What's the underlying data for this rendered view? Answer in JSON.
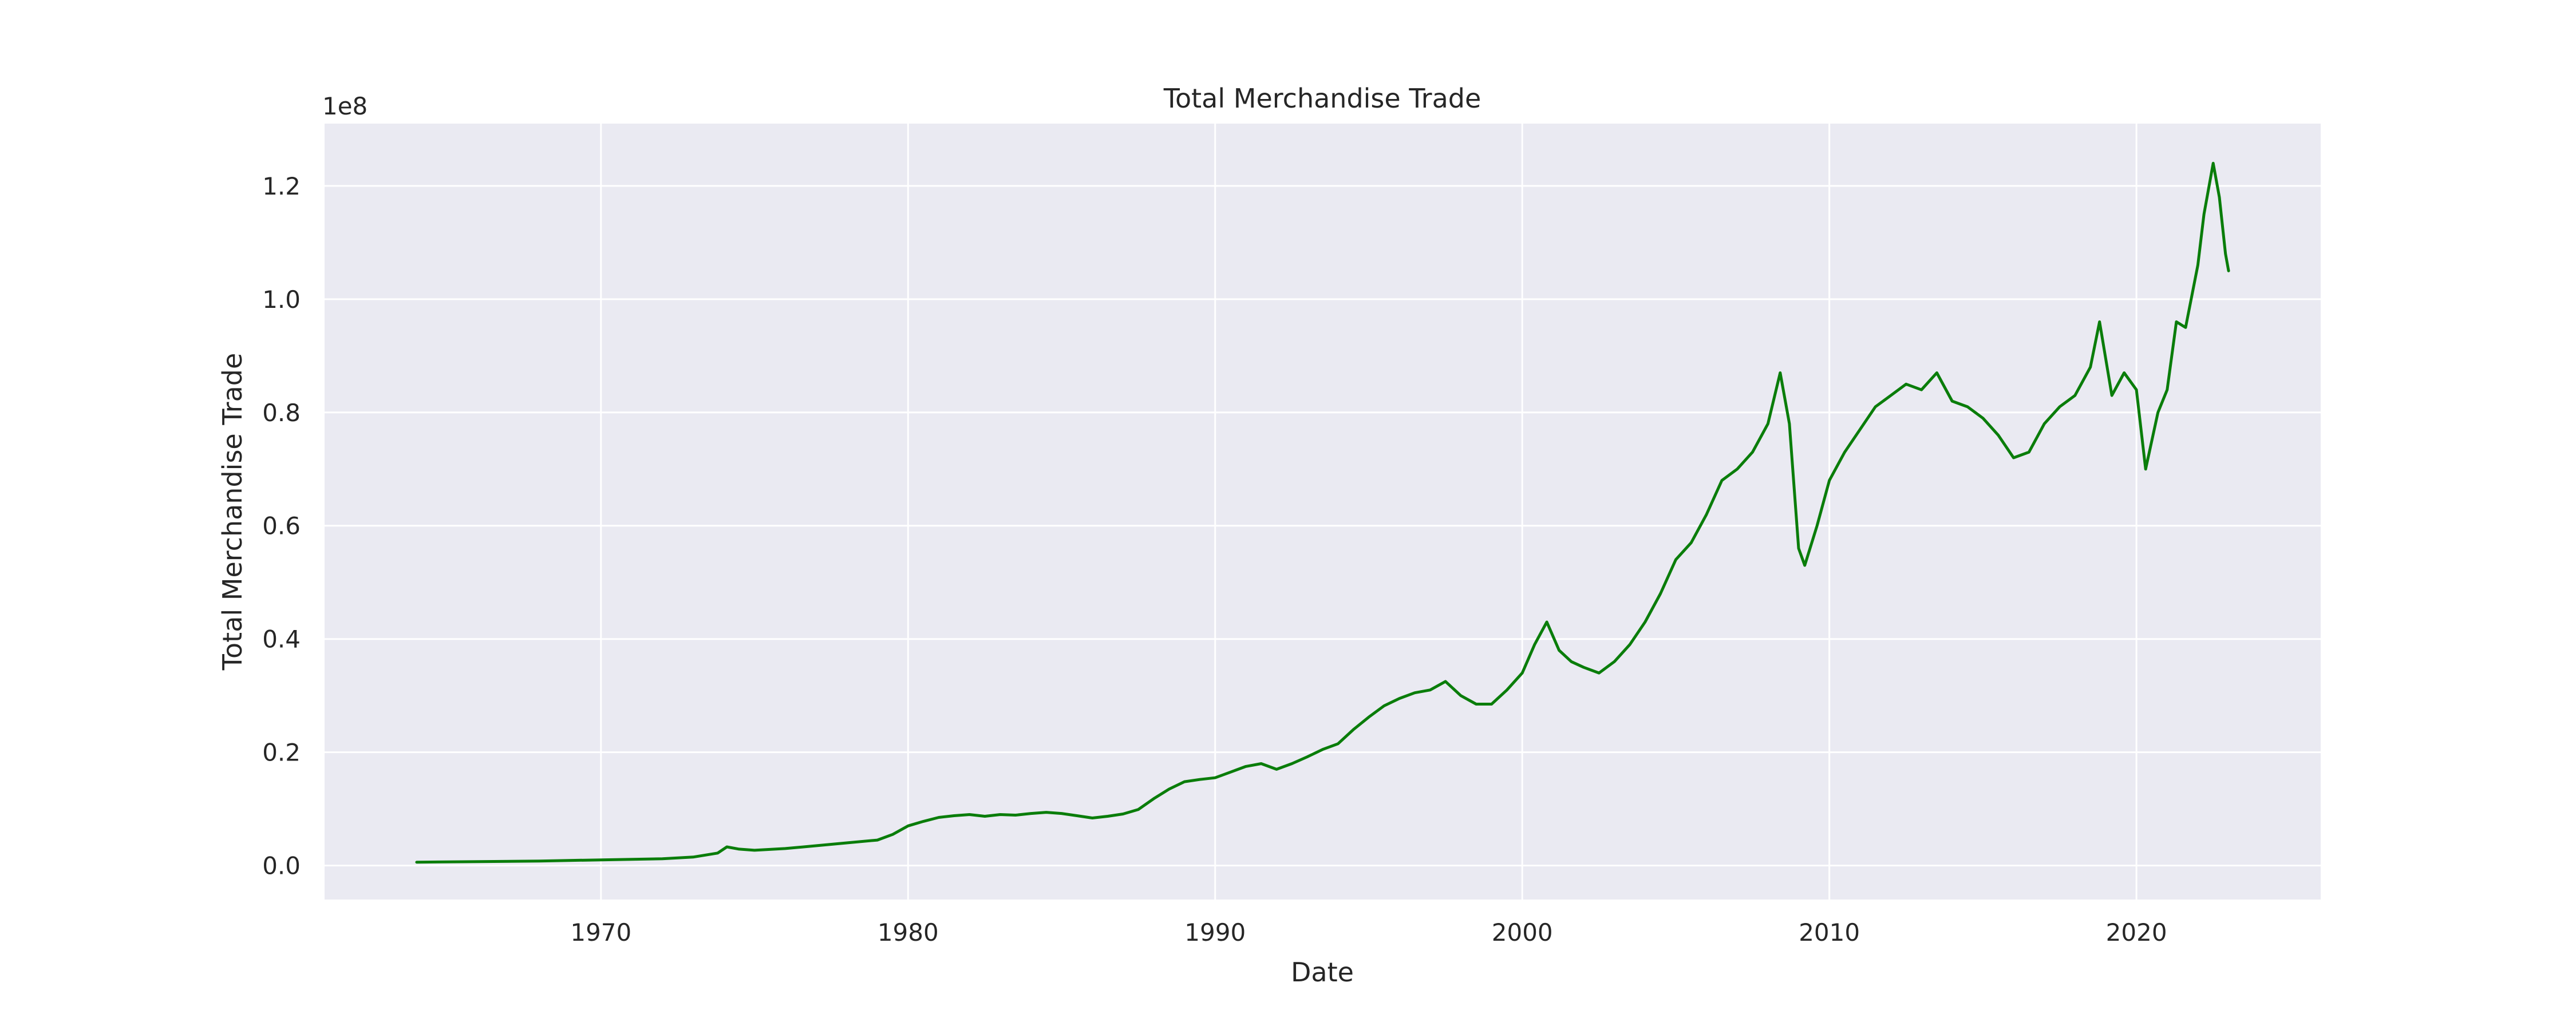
{
  "chart_data": {
    "type": "line",
    "title": "Total Merchandise Trade",
    "xlabel": "Date",
    "ylabel": "Total Merchandise Trade",
    "y_offset_label": "1e8",
    "xlim": [
      1961,
      2026
    ],
    "ylim": [
      -0.06,
      1.31
    ],
    "y_scale_note": "values in units of 1e8",
    "x_ticks": [
      {
        "value": 1970,
        "label": "1970"
      },
      {
        "value": 1980,
        "label": "1980"
      },
      {
        "value": 1990,
        "label": "1990"
      },
      {
        "value": 2000,
        "label": "2000"
      },
      {
        "value": 2010,
        "label": "2010"
      },
      {
        "value": 2020,
        "label": "2020"
      }
    ],
    "y_ticks": [
      {
        "value": 0.0,
        "label": "0.0"
      },
      {
        "value": 0.2,
        "label": "0.2"
      },
      {
        "value": 0.4,
        "label": "0.4"
      },
      {
        "value": 0.6,
        "label": "0.6"
      },
      {
        "value": 0.8,
        "label": "0.8"
      },
      {
        "value": 1.0,
        "label": "1.0"
      },
      {
        "value": 1.2,
        "label": "1.2"
      }
    ],
    "grid": true,
    "colors": {
      "line": "#0a7d0a",
      "plot_background": "#eaeaf2",
      "grid": "#ffffff"
    },
    "series": [
      {
        "x": [
          1964.0,
          1966.0,
          1968.0,
          1970.0,
          1972.0,
          1973.0,
          1973.8,
          1974.1,
          1974.5,
          1975.0,
          1976.0,
          1977.0,
          1978.0,
          1979.0,
          1979.5,
          1980.0,
          1980.5,
          1981.0,
          1981.5,
          1982.0,
          1982.5,
          1983.0,
          1983.5,
          1984.0,
          1984.5,
          1985.0,
          1985.5,
          1986.0,
          1986.5,
          1987.0,
          1987.5,
          1988.0,
          1988.5,
          1989.0,
          1989.5,
          1990.0,
          1990.5,
          1991.0,
          1991.5,
          1992.0,
          1992.5,
          1993.0,
          1993.5,
          1994.0,
          1994.5,
          1995.0,
          1995.5,
          1996.0,
          1996.5,
          1997.0,
          1997.5,
          1998.0,
          1998.5,
          1999.0,
          1999.5,
          2000.0,
          2000.4,
          2000.8,
          2001.2,
          2001.6,
          2002.0,
          2002.5,
          2003.0,
          2003.5,
          2004.0,
          2004.5,
          2005.0,
          2005.5,
          2006.0,
          2006.5,
          2007.0,
          2007.5,
          2008.0,
          2008.4,
          2008.7,
          2009.0,
          2009.2,
          2009.6,
          2010.0,
          2010.5,
          2011.0,
          2011.5,
          2012.0,
          2012.5,
          2013.0,
          2013.5,
          2014.0,
          2014.5,
          2015.0,
          2015.5,
          2016.0,
          2016.5,
          2017.0,
          2017.5,
          2018.0,
          2018.5,
          2018.8,
          2019.2,
          2019.6,
          2020.0,
          2020.3,
          2020.7,
          2021.0,
          2021.3,
          2021.6,
          2022.0,
          2022.2,
          2022.5,
          2022.7,
          2022.9,
          2023.0
        ],
        "y": [
          0.006,
          0.007,
          0.008,
          0.01,
          0.012,
          0.015,
          0.022,
          0.033,
          0.029,
          0.027,
          0.03,
          0.035,
          0.04,
          0.045,
          0.055,
          0.07,
          0.078,
          0.085,
          0.088,
          0.09,
          0.087,
          0.09,
          0.089,
          0.092,
          0.094,
          0.092,
          0.088,
          0.084,
          0.087,
          0.091,
          0.099,
          0.118,
          0.135,
          0.148,
          0.152,
          0.155,
          0.165,
          0.175,
          0.18,
          0.17,
          0.18,
          0.192,
          0.205,
          0.215,
          0.24,
          0.262,
          0.282,
          0.295,
          0.305,
          0.31,
          0.325,
          0.3,
          0.285,
          0.285,
          0.31,
          0.34,
          0.39,
          0.43,
          0.38,
          0.36,
          0.35,
          0.34,
          0.36,
          0.39,
          0.43,
          0.48,
          0.54,
          0.57,
          0.62,
          0.68,
          0.7,
          0.73,
          0.78,
          0.87,
          0.78,
          0.56,
          0.53,
          0.6,
          0.68,
          0.73,
          0.77,
          0.81,
          0.83,
          0.85,
          0.84,
          0.87,
          0.82,
          0.81,
          0.79,
          0.76,
          0.72,
          0.73,
          0.78,
          0.81,
          0.83,
          0.88,
          0.96,
          0.83,
          0.87,
          0.84,
          0.7,
          0.8,
          0.84,
          0.96,
          0.95,
          1.06,
          1.15,
          1.24,
          1.18,
          1.08,
          1.05
        ]
      }
    ]
  }
}
